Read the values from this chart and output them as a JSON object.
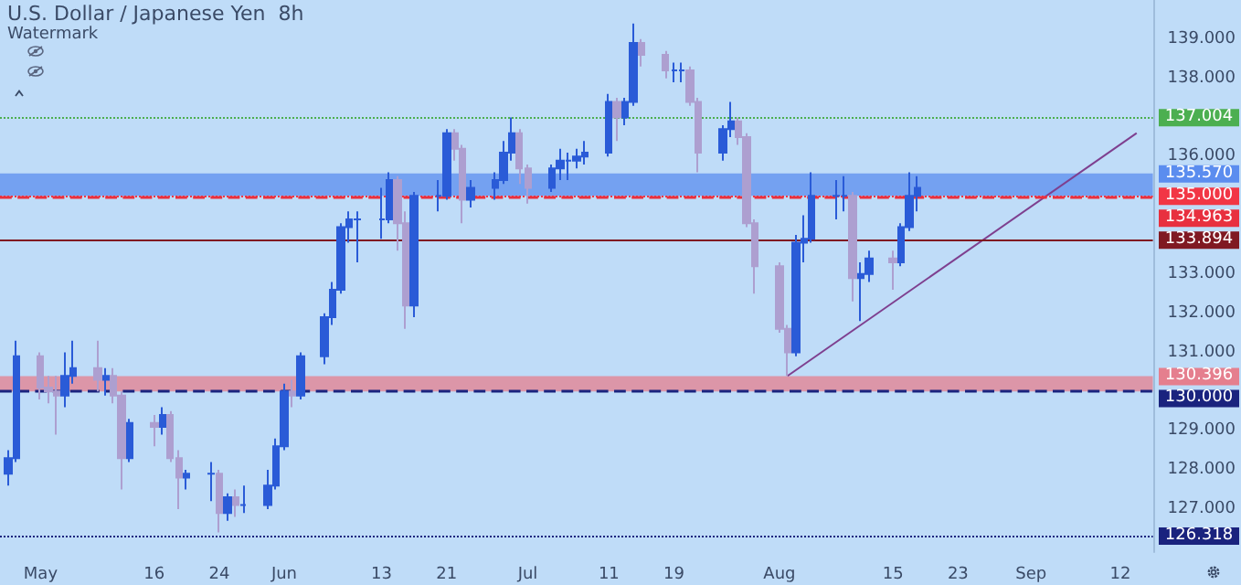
{
  "chart_data": {
    "type": "candlestick",
    "title": "U.S. Dollar / Japanese Yen  8h",
    "annotations": [
      "Watermark"
    ],
    "x": [
      "--04-28",
      "--04-29",
      "--05-02",
      "--05-03",
      "--05-04",
      "--05-05",
      "--05-06",
      "--05-09",
      "--05-10",
      "--05-11",
      "--05-12",
      "--05-13",
      "--05-16",
      "--05-17",
      "--05-18",
      "--05-19",
      "--05-20",
      "--05-23",
      "--05-24",
      "--05-25",
      "--05-26",
      "--05-27",
      "--05-30",
      "--05-31",
      "--06-01",
      "--06-02",
      "--06-03",
      "--06-06",
      "--06-07",
      "--06-08",
      "--06-09",
      "--06-10",
      "--06-13",
      "--06-14",
      "--06-15",
      "--06-16",
      "--06-17",
      "--06-20",
      "--06-21",
      "--06-22",
      "--06-23",
      "--06-24",
      "--06-27",
      "--06-28",
      "--06-29",
      "--06-30",
      "--07-01",
      "--07-04",
      "--07-05",
      "--07-06",
      "--07-07",
      "--07-08",
      "--07-11",
      "--07-12",
      "--07-13",
      "--07-14",
      "--07-15",
      "--07-18",
      "--07-19",
      "--07-20",
      "--07-21",
      "--07-22",
      "--07-25",
      "--07-26",
      "--07-27",
      "--07-28",
      "--07-29",
      "--08-01",
      "--08-02",
      "--08-03",
      "--08-04",
      "--08-05",
      "--08-08",
      "--08-09",
      "--08-10",
      "--08-11",
      "--08-12",
      "--08-15",
      "--08-16",
      "--08-17",
      "--08-18"
    ],
    "ohlc": [
      [
        127.9,
        128.5,
        127.6,
        128.3
      ],
      [
        128.3,
        131.3,
        128.2,
        130.9
      ],
      [
        130.9,
        131.0,
        129.8,
        130.1
      ],
      [
        130.1,
        130.4,
        129.7,
        130.0
      ],
      [
        130.0,
        130.4,
        128.9,
        129.9
      ],
      [
        129.9,
        131.0,
        129.6,
        130.4
      ],
      [
        130.4,
        131.3,
        130.2,
        130.6
      ],
      [
        130.6,
        131.3,
        130.0,
        130.3
      ],
      [
        130.3,
        130.6,
        129.9,
        130.4
      ],
      [
        130.4,
        130.6,
        129.7,
        129.9
      ],
      [
        129.9,
        130.0,
        127.5,
        128.3
      ],
      [
        128.3,
        129.3,
        128.2,
        129.2
      ],
      [
        129.2,
        129.4,
        128.6,
        129.1
      ],
      [
        129.1,
        129.6,
        128.9,
        129.4
      ],
      [
        129.4,
        129.5,
        128.2,
        128.3
      ],
      [
        128.3,
        128.5,
        127.0,
        127.8
      ],
      [
        127.8,
        128.0,
        127.5,
        127.9
      ],
      [
        127.9,
        128.2,
        127.2,
        127.9
      ],
      [
        127.9,
        128.0,
        126.4,
        126.9
      ],
      [
        126.9,
        127.4,
        126.7,
        127.3
      ],
      [
        127.3,
        127.5,
        126.8,
        127.1
      ],
      [
        127.1,
        127.6,
        126.9,
        127.1
      ],
      [
        127.1,
        128.0,
        127.0,
        127.6
      ],
      [
        127.6,
        128.8,
        127.5,
        128.6
      ],
      [
        128.6,
        130.2,
        128.5,
        130.0
      ],
      [
        130.0,
        130.3,
        129.6,
        129.9
      ],
      [
        129.9,
        131.0,
        129.8,
        130.9
      ],
      [
        130.9,
        132.0,
        130.7,
        131.9
      ],
      [
        131.9,
        132.8,
        131.7,
        132.6
      ],
      [
        132.6,
        134.3,
        132.5,
        134.2
      ],
      [
        134.2,
        134.6,
        133.8,
        134.4
      ],
      [
        134.4,
        134.6,
        133.3,
        134.4
      ],
      [
        134.4,
        135.2,
        133.9,
        134.4
      ],
      [
        134.4,
        135.6,
        134.3,
        135.4
      ],
      [
        135.4,
        135.5,
        133.6,
        134.3
      ],
      [
        134.3,
        134.6,
        131.6,
        132.2
      ],
      [
        132.2,
        135.1,
        131.9,
        135.0
      ],
      [
        135.0,
        135.4,
        134.6,
        135.0
      ],
      [
        135.0,
        136.7,
        134.9,
        136.6
      ],
      [
        136.6,
        136.7,
        135.9,
        136.2
      ],
      [
        136.2,
        136.3,
        134.3,
        134.9
      ],
      [
        134.9,
        135.4,
        134.7,
        135.2
      ],
      [
        135.2,
        135.6,
        134.9,
        135.4
      ],
      [
        135.4,
        136.4,
        135.3,
        136.1
      ],
      [
        136.1,
        137.0,
        135.9,
        136.6
      ],
      [
        136.6,
        136.7,
        135.3,
        135.7
      ],
      [
        135.7,
        135.8,
        134.8,
        135.2
      ],
      [
        135.2,
        135.8,
        135.1,
        135.7
      ],
      [
        135.7,
        136.2,
        135.4,
        135.9
      ],
      [
        135.9,
        136.1,
        135.4,
        135.9
      ],
      [
        135.9,
        136.2,
        135.7,
        136.0
      ],
      [
        136.0,
        136.4,
        135.8,
        136.1
      ],
      [
        136.1,
        137.6,
        136.0,
        137.4
      ],
      [
        137.4,
        137.5,
        136.4,
        137.0
      ],
      [
        137.0,
        137.5,
        136.8,
        137.4
      ],
      [
        137.4,
        139.4,
        137.3,
        138.9
      ],
      [
        138.9,
        139.0,
        138.3,
        138.6
      ],
      [
        138.6,
        138.7,
        138.0,
        138.2
      ],
      [
        138.2,
        138.4,
        137.9,
        138.2
      ],
      [
        138.2,
        138.4,
        137.9,
        138.2
      ],
      [
        138.2,
        138.3,
        137.3,
        137.4
      ],
      [
        137.4,
        137.5,
        135.6,
        136.1
      ],
      [
        136.1,
        136.8,
        135.9,
        136.7
      ],
      [
        136.7,
        137.4,
        136.5,
        136.9
      ],
      [
        136.9,
        137.0,
        136.3,
        136.5
      ],
      [
        136.5,
        136.6,
        134.2,
        134.3
      ],
      [
        134.3,
        134.4,
        132.5,
        133.2
      ],
      [
        133.2,
        133.3,
        131.5,
        131.6
      ],
      [
        131.6,
        131.7,
        130.4,
        131.0
      ],
      [
        131.0,
        134.0,
        130.9,
        133.8
      ],
      [
        133.8,
        134.5,
        133.3,
        133.9
      ],
      [
        133.9,
        135.6,
        133.8,
        135.0
      ],
      [
        135.0,
        135.4,
        134.4,
        135.0
      ],
      [
        135.0,
        135.5,
        134.6,
        135.0
      ],
      [
        135.0,
        135.1,
        132.3,
        132.9
      ],
      [
        132.9,
        133.3,
        131.8,
        133.0
      ],
      [
        133.0,
        133.6,
        132.8,
        133.4
      ],
      [
        133.4,
        133.6,
        132.6,
        133.3
      ],
      [
        133.3,
        134.3,
        133.2,
        134.2
      ],
      [
        134.2,
        135.6,
        134.1,
        135.0
      ],
      [
        135.0,
        135.5,
        134.6,
        135.2
      ]
    ],
    "series": [
      {
        "type": "line",
        "color": "#7e3f8f",
        "x": [
          "--08-02",
          "--09-14"
        ],
        "values": [
          130.4,
          136.6
        ]
      }
    ],
    "xlim": [
      "--04-27",
      "--09-16"
    ],
    "xticks": [
      {
        "value": "--05-02",
        "label": "May"
      },
      {
        "value": "--05-16",
        "label": "16"
      },
      {
        "value": "--05-24",
        "label": "24"
      },
      {
        "value": "--06-01",
        "label": "Jun"
      },
      {
        "value": "--06-13",
        "label": "13"
      },
      {
        "value": "--06-21",
        "label": "21"
      },
      {
        "value": "--07-01",
        "label": "Jul"
      },
      {
        "value": "--07-11",
        "label": "11"
      },
      {
        "value": "--07-19",
        "label": "19"
      },
      {
        "value": "--08-01",
        "label": "Aug"
      },
      {
        "value": "--08-15",
        "label": "15"
      },
      {
        "value": "--08-23",
        "label": "23"
      },
      {
        "value": "--09-01",
        "label": "Sep"
      },
      {
        "value": "--09-12",
        "label": "12"
      }
    ],
    "ylim": [
      125.9,
      140
    ],
    "yticks": [
      {
        "value": 127,
        "label": "127.000"
      },
      {
        "value": 128,
        "label": "128.000"
      },
      {
        "value": 129,
        "label": "129.000"
      },
      {
        "value": 131,
        "label": "131.000"
      },
      {
        "value": 132,
        "label": "132.000"
      },
      {
        "value": 133,
        "label": "133.000"
      },
      {
        "value": 136,
        "label": "136.000"
      },
      {
        "value": 138,
        "label": "138.000"
      },
      {
        "value": 139,
        "label": "139.000"
      }
    ],
    "ref_lines": [
      {
        "axis": "y",
        "value": 137.004,
        "label": "137.004",
        "color": "#4caf50",
        "line_style": "dotted"
      },
      {
        "axis": "y",
        "value": 135.0,
        "label": "135.000",
        "color": "#f23645",
        "line_style": "dotted"
      },
      {
        "axis": "y",
        "value": 134.963,
        "label": "134.963",
        "color": "#e8303f",
        "line_style": "dashed"
      },
      {
        "axis": "y",
        "value": 133.894,
        "label": "133.894",
        "color": "#801922",
        "line_style": "solid"
      },
      {
        "axis": "y",
        "value": 130.0,
        "label": "130.000",
        "color": "#1a237e",
        "line_style": "dashed"
      },
      {
        "axis": "y",
        "value": 126.318,
        "label": "126.318",
        "color": "#1a237e",
        "line_style": "dotted"
      }
    ],
    "bands": [
      {
        "axis": "y",
        "from": 135.0,
        "to": 135.57,
        "label": "135.570",
        "color": "#5b8def"
      },
      {
        "axis": "y",
        "from": 130.0,
        "to": 130.396,
        "label": "130.396",
        "color": "#e57f8e"
      }
    ],
    "grid": false
  }
}
